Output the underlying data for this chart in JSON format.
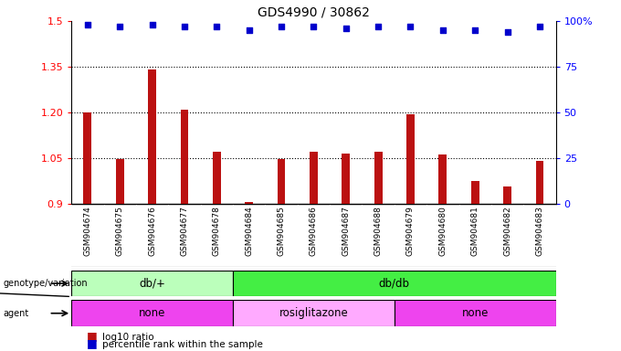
{
  "title": "GDS4990 / 30862",
  "samples": [
    "GSM904674",
    "GSM904675",
    "GSM904676",
    "GSM904677",
    "GSM904678",
    "GSM904684",
    "GSM904685",
    "GSM904686",
    "GSM904687",
    "GSM904688",
    "GSM904679",
    "GSM904680",
    "GSM904681",
    "GSM904682",
    "GSM904683"
  ],
  "log10_ratio": [
    1.2,
    1.045,
    1.34,
    1.21,
    1.07,
    0.905,
    1.045,
    1.07,
    1.063,
    1.07,
    1.195,
    1.06,
    0.975,
    0.955,
    1.04
  ],
  "percentile_rank": [
    98,
    97,
    98,
    97,
    97,
    95,
    97,
    97,
    96,
    97,
    97,
    95,
    95,
    94,
    97
  ],
  "bar_color": "#bb1111",
  "dot_color": "#0000cc",
  "baseline": 0.9,
  "ylim_left": [
    0.9,
    1.5
  ],
  "ylim_right": [
    0,
    100
  ],
  "yticks_left": [
    0.9,
    1.05,
    1.2,
    1.35,
    1.5
  ],
  "yticks_right": [
    0,
    25,
    50,
    75,
    100
  ],
  "ytick_labels_left": [
    "0.9",
    "1.05",
    "1.20",
    "1.35",
    "1.5"
  ],
  "ytick_labels_right": [
    "0",
    "25",
    "50",
    "75",
    "100%"
  ],
  "hlines": [
    1.05,
    1.2,
    1.35
  ],
  "genotype_groups": [
    {
      "label": "db/+",
      "start": 0,
      "end": 5,
      "color": "#bbffbb"
    },
    {
      "label": "db/db",
      "start": 5,
      "end": 15,
      "color": "#44ee44"
    }
  ],
  "agent_groups": [
    {
      "label": "none",
      "start": 0,
      "end": 5,
      "color": "#ee44ee"
    },
    {
      "label": "rosiglitazone",
      "start": 5,
      "end": 10,
      "color": "#ffaaff"
    },
    {
      "label": "none",
      "start": 10,
      "end": 15,
      "color": "#ee44ee"
    }
  ],
  "legend_red_label": "log10 ratio",
  "legend_blue_label": "percentile rank within the sample",
  "background_color": "#ffffff",
  "xlabels_bg": "#cccccc",
  "bar_width": 0.25
}
